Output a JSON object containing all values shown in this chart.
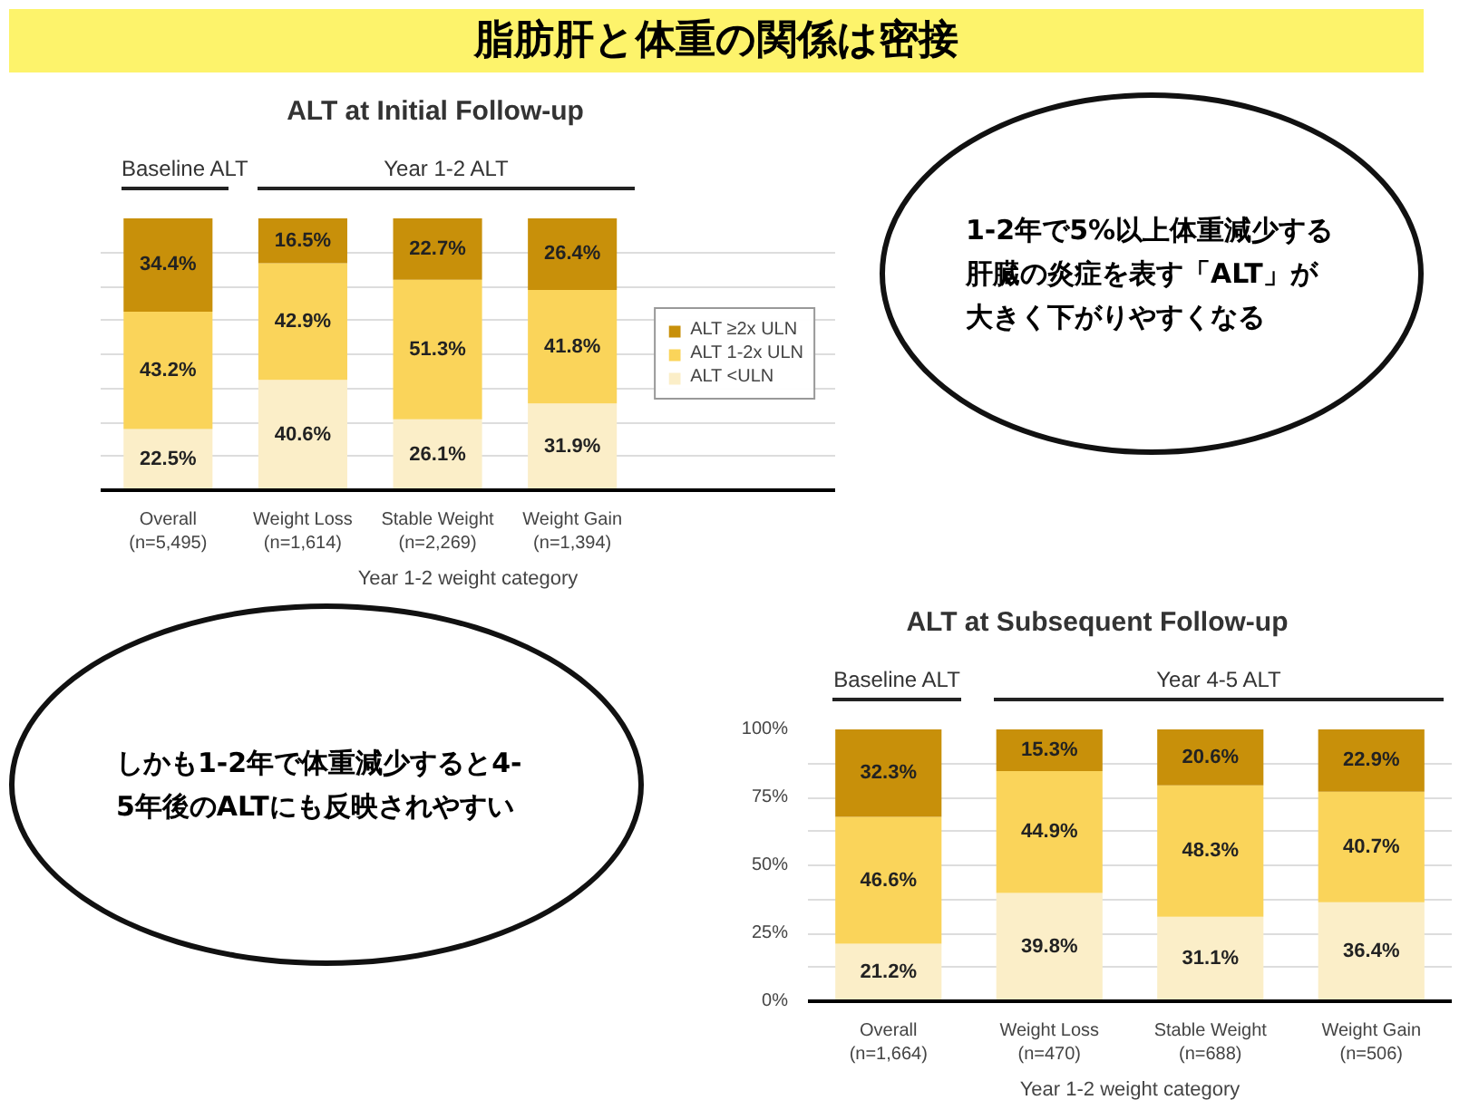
{
  "chart_data": [
    {
      "type": "bar",
      "stacked": true,
      "title": "ALT at Initial Follow-up",
      "xlabel": "Year 1-2 weight category",
      "categories": [
        "Overall\n(n=5,495)",
        "Weight Loss\n(n=1,614)",
        "Stable Weight\n(n=2,269)",
        "Weight Gain\n(n=1,394)"
      ],
      "series": [
        {
          "name": "ALT <ULN",
          "color": "#fbeec8",
          "values": [
            22.5,
            40.6,
            26.1,
            31.9
          ],
          "value_labels": [
            "22.5%",
            "40.6%",
            "26.1%",
            "31.9%"
          ]
        },
        {
          "name": "ALT 1-2x ULN",
          "color": "#fad45a",
          "values": [
            43.2,
            42.9,
            51.3,
            41.8
          ],
          "value_labels": [
            "43.2%",
            "42.9%",
            "51.3%",
            "41.8%"
          ]
        },
        {
          "name": "ALT ≥2x ULN",
          "color": "#c8900a",
          "values": [
            34.4,
            16.5,
            22.7,
            26.4
          ],
          "value_labels": [
            "34.4%",
            "16.5%",
            "22.7%",
            "26.4%"
          ]
        }
      ],
      "ylim": [
        0,
        100
      ],
      "yticks": [
        {
          "value": 0,
          "label": null
        },
        {
          "value": 12.5,
          "label": null
        },
        {
          "value": 25,
          "label": null
        },
        {
          "value": 37.5,
          "label": null
        },
        {
          "value": 50,
          "label": null
        },
        {
          "value": 62.5,
          "label": null
        },
        {
          "value": 75,
          "label": null
        },
        {
          "value": 87.5,
          "label": null
        }
      ],
      "tick_labels": "x",
      "grid": "y",
      "legend": "right",
      "annotations": [
        "脂肪肝と体重の関係は密接",
        "Baseline ALT",
        "Year 1-2 ALT",
        "1-2年で5%以上体重減少する肝臓の炎症を表す「ALT」が大きく下がりやすくなる"
      ]
    },
    {
      "type": "bar",
      "stacked": true,
      "title": "ALT at Subsequent Follow-up",
      "xlabel": "Year 1-2 weight category",
      "categories": [
        "Overall\n(n=1,664)",
        "Weight Loss\n(n=470)",
        "Stable Weight\n(n=688)",
        "Weight Gain\n(n=506)"
      ],
      "series": [
        {
          "color": "#fbeec8",
          "values": [
            21.2,
            39.8,
            31.1,
            36.4
          ],
          "value_labels": [
            "21.2%",
            "39.8%",
            "31.1%",
            "36.4%"
          ]
        },
        {
          "color": "#fad45a",
          "values": [
            46.6,
            44.9,
            48.3,
            40.7
          ],
          "value_labels": [
            "46.6%",
            "44.9%",
            "48.3%",
            "40.7%"
          ]
        },
        {
          "color": "#c8900a",
          "values": [
            32.3,
            15.3,
            20.6,
            22.9
          ],
          "value_labels": [
            "32.3%",
            "15.3%",
            "20.6%",
            "22.9%"
          ]
        }
      ],
      "ylim": [
        0,
        100
      ],
      "yticks": [
        {
          "value": 0,
          "label": "0%"
        },
        {
          "value": 12.5,
          "label": null
        },
        {
          "value": 25,
          "label": "25%"
        },
        {
          "value": 37.5,
          "label": null
        },
        {
          "value": 50,
          "label": "50%"
        },
        {
          "value": 62.5,
          "label": null
        },
        {
          "value": 75,
          "label": "75%"
        },
        {
          "value": 87.5,
          "label": null
        },
        {
          "value": 100,
          "label": "100%"
        }
      ],
      "grid": "y",
      "legend": false,
      "annotations": [
        "Baseline ALT",
        "Year 4-5 ALT",
        "しかも1-2年で体重減少すると4-5年後のALTにも反映されやすい"
      ]
    }
  ]
}
